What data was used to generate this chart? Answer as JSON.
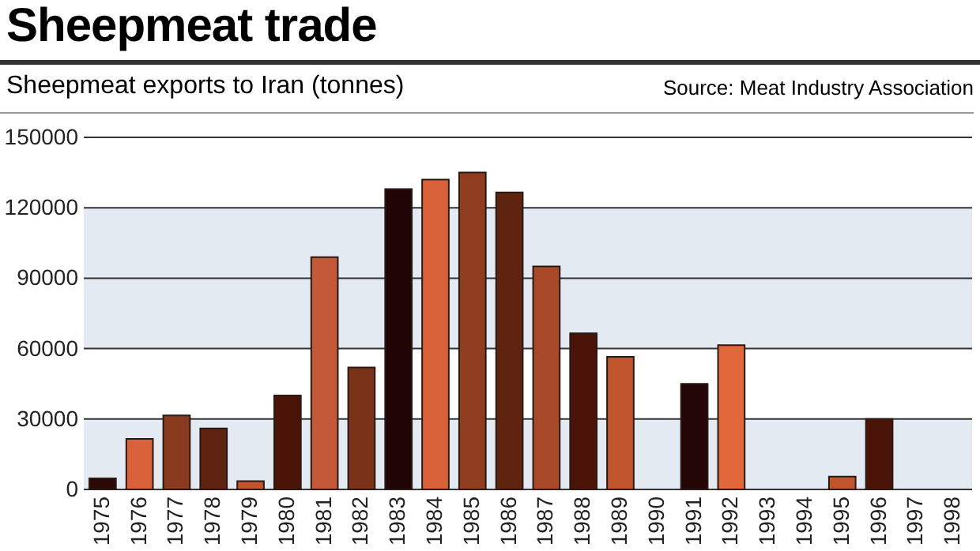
{
  "chart_data": {
    "type": "bar",
    "title": "Sheepmeat trade",
    "subtitle": "Sheepmeat exports to Iran (tonnes)",
    "annotations": [
      "Source: Meat Industry Association"
    ],
    "categories": [
      "1975",
      "1976",
      "1977",
      "1978",
      "1979",
      "1980",
      "1981",
      "1982",
      "1983",
      "1984",
      "1985",
      "1986",
      "1987",
      "1988",
      "1989",
      "1990",
      "1991",
      "1992",
      "1993",
      "1994",
      "1995",
      "1996",
      "1997",
      "1998"
    ],
    "values": [
      4700,
      21500,
      31500,
      26000,
      3500,
      40000,
      99000,
      52000,
      128000,
      132000,
      135000,
      126500,
      95000,
      66500,
      56500,
      0,
      45000,
      61500,
      0,
      0,
      5500,
      30000,
      0,
      0
    ],
    "colors": [
      "#2a0a05",
      "#d9623a",
      "#8a3a1e",
      "#5e2410",
      "#c0552e",
      "#4a1508",
      "#c4593a",
      "#7a3318",
      "#1f0505",
      "#d9623a",
      "#8f3d1f",
      "#5e2410",
      "#a84a2a",
      "#4a1508",
      "#c0552e",
      "#4a1508",
      "#230605",
      "#e0683a",
      "#c0552e",
      "#c0552e",
      "#c0552e",
      "#4a1508",
      "#4a1508",
      "#4a1508"
    ],
    "ylim": [
      0,
      150000
    ],
    "yticks": [
      0,
      30000,
      60000,
      90000,
      120000,
      150000
    ],
    "grid": "y",
    "bands": [
      {
        "axis": "y",
        "from": 0,
        "to": 30000,
        "color": "#e3eaf2"
      },
      {
        "axis": "y",
        "from": 60000,
        "to": 120000,
        "color": "#e3eaf2"
      }
    ]
  }
}
